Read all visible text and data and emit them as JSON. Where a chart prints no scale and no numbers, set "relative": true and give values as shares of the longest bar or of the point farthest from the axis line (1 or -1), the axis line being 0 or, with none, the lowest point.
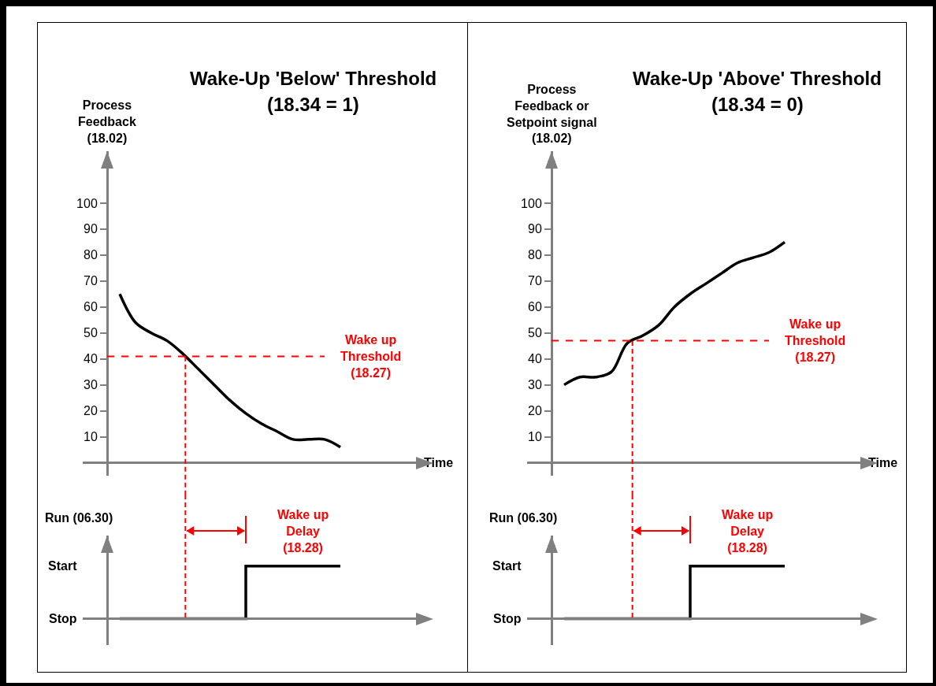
{
  "chart_data": [
    {
      "type": "line",
      "title": "Wake-Up 'Below' Threshold",
      "subtitle": "(18.34 = 1)",
      "ylabel": "Process Feedback (18.02)",
      "xlabel": "Time",
      "categories": [
        null,
        null,
        null,
        null,
        null,
        null,
        null,
        null,
        null,
        null,
        null,
        null,
        null,
        null,
        null
      ],
      "values": [
        65,
        54,
        50,
        47,
        42,
        36,
        30,
        24,
        19,
        15,
        12,
        9,
        9,
        9,
        6
      ],
      "color": "#000000",
      "ylim": [
        -5,
        120
      ],
      "yticks": [
        10,
        20,
        30,
        40,
        50,
        60,
        70,
        80,
        90,
        100
      ],
      "ref_lines": [
        {
          "axis": "y",
          "value": 41,
          "label": "Wake up Threshold (18.27)",
          "color": "#ff0000",
          "line_style": "dashed"
        }
      ],
      "grid": false,
      "marker": "none",
      "line_style": "solid"
    },
    {
      "type": "step",
      "ylabel": "Run (06.30)",
      "relative": true,
      "categories": [
        null,
        null,
        null,
        null,
        null,
        null,
        null,
        null,
        null,
        null,
        null,
        null,
        null,
        null,
        null
      ],
      "values": [
        0,
        0,
        0,
        0,
        0,
        0,
        0,
        0,
        1,
        1,
        1,
        1,
        1,
        1,
        1
      ],
      "color": "#000000",
      "annotations": [
        "Stop",
        "Start",
        "Wake up Delay (18.28)"
      ],
      "grid": false,
      "marker": "none",
      "line_style": "solid"
    },
    {
      "type": "line",
      "title": "Wake-Up 'Above' Threshold",
      "subtitle": "(18.34 = 0)",
      "ylabel": "Process Feedback or Setpoint signal (18.02)",
      "xlabel": "Time",
      "categories": [
        null,
        null,
        null,
        null,
        null,
        null,
        null,
        null,
        null,
        null,
        null,
        null,
        null,
        null,
        null
      ],
      "values": [
        30,
        33,
        33,
        35,
        46,
        49,
        53,
        60,
        65,
        69,
        73,
        77,
        79,
        81,
        85
      ],
      "color": "#000000",
      "ylim": [
        -5,
        120
      ],
      "yticks": [
        10,
        20,
        30,
        40,
        50,
        60,
        70,
        80,
        90,
        100
      ],
      "ref_lines": [
        {
          "axis": "y",
          "value": 47,
          "label": "Wake up Threshold (18.27)",
          "color": "#ff0000",
          "line_style": "dashed"
        }
      ],
      "grid": false,
      "marker": "none",
      "line_style": "solid"
    },
    {
      "type": "step",
      "ylabel": "Run (06.30)",
      "relative": true,
      "categories": [
        null,
        null,
        null,
        null,
        null,
        null,
        null,
        null,
        null,
        null,
        null,
        null,
        null,
        null,
        null
      ],
      "values": [
        0,
        0,
        0,
        0,
        0,
        0,
        0,
        0,
        1,
        1,
        1,
        1,
        1,
        1,
        1
      ],
      "color": "#000000",
      "annotations": [
        "Stop",
        "Start",
        "Wake up Delay (18.28)"
      ],
      "grid": false,
      "marker": "none",
      "line_style": "solid"
    }
  ]
}
